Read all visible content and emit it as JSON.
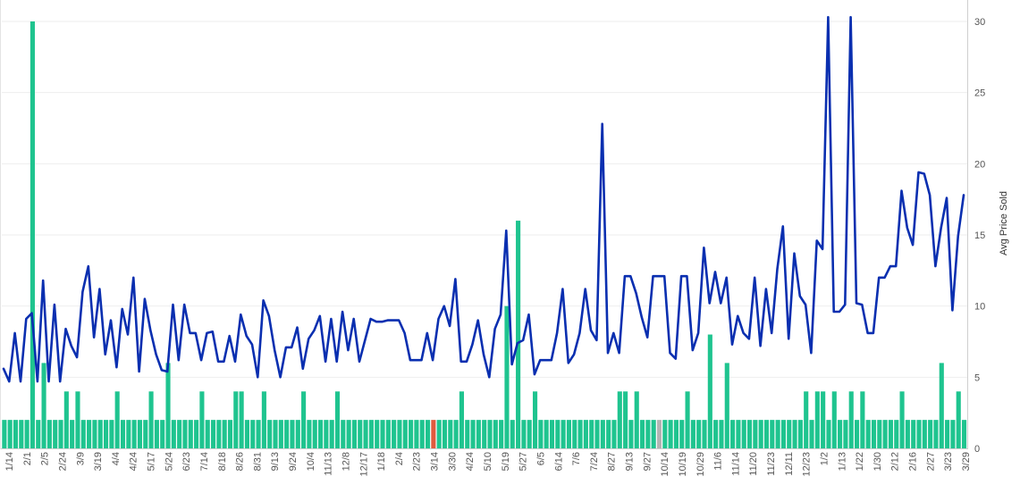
{
  "chart_data": {
    "type": "bar+line",
    "title": "",
    "xlabel": "",
    "ylabel": "",
    "y2label": "Avg Price Sold",
    "y2lim": [
      0,
      31
    ],
    "y2ticks": [
      0,
      5,
      10,
      15,
      20,
      25,
      30
    ],
    "grid": true,
    "x_tick_labels": [
      "1/14",
      "2/1",
      "2/5",
      "2/24",
      "3/9",
      "3/19",
      "4/4",
      "4/24",
      "5/17",
      "5/24",
      "6/23",
      "7/14",
      "8/18",
      "8/26",
      "8/31",
      "9/13",
      "9/24",
      "10/4",
      "11/13",
      "12/8",
      "12/17",
      "1/18",
      "2/4",
      "2/23",
      "3/14",
      "3/30",
      "4/24",
      "5/10",
      "5/19",
      "5/27",
      "6/5",
      "6/14",
      "7/6",
      "7/24",
      "8/27",
      "9/13",
      "9/27",
      "10/14",
      "10/19",
      "10/29",
      "11/6",
      "11/14",
      "11/20",
      "11/23",
      "12/11",
      "12/23",
      "1/2",
      "1/13",
      "1/22",
      "1/30",
      "2/12",
      "2/16",
      "2/27",
      "3/23",
      "3/29"
    ],
    "bar_series": {
      "colors": {
        "default": "#1fc48f",
        "highlight_red": "#e05a3e",
        "highlight_gray": "#b3b3b3"
      },
      "values": [
        2,
        2,
        2,
        2,
        2,
        30,
        2,
        6,
        2,
        2,
        2,
        4,
        2,
        4,
        2,
        2,
        2,
        2,
        2,
        2,
        4,
        2,
        2,
        2,
        2,
        2,
        4,
        2,
        2,
        6,
        2,
        2,
        2,
        2,
        2,
        4,
        2,
        2,
        2,
        2,
        2,
        4,
        4,
        2,
        2,
        2,
        4,
        2,
        2,
        2,
        2,
        2,
        2,
        4,
        2,
        2,
        2,
        2,
        2,
        4,
        2,
        2,
        2,
        2,
        2,
        2,
        2,
        2,
        2,
        2,
        2,
        2,
        2,
        2,
        2,
        2,
        2,
        2,
        2,
        2,
        2,
        4,
        2,
        2,
        2,
        2,
        2,
        2,
        2,
        10,
        2,
        16,
        2,
        2,
        4,
        2,
        2,
        2,
        2,
        2,
        2,
        2,
        2,
        2,
        2,
        2,
        2,
        2,
        2,
        4,
        4,
        2,
        4,
        2,
        2,
        2,
        2,
        2,
        2,
        2,
        2,
        4,
        2,
        2,
        2,
        8,
        2,
        2,
        6,
        2,
        2,
        2,
        2,
        2,
        2,
        2,
        2,
        2,
        2,
        2,
        2,
        2,
        4,
        2,
        4,
        4,
        2,
        4,
        2,
        2,
        4,
        2,
        4,
        2,
        2,
        2,
        2,
        2,
        2,
        4,
        2,
        2,
        2,
        2,
        2,
        2,
        6,
        2,
        2,
        4,
        2
      ],
      "red_index": 76,
      "gray_index": 116
    },
    "line_series": {
      "color": "#0a2fb0",
      "values": [
        5.6,
        4.7,
        8.1,
        4.7,
        9.1,
        9.5,
        4.7,
        11.8,
        4.7,
        10.1,
        4.7,
        8.4,
        7.2,
        6.4,
        11,
        12.8,
        7.8,
        11.2,
        6.6,
        9,
        5.7,
        9.8,
        8,
        12,
        5.4,
        10.5,
        8.3,
        6.6,
        5.5,
        5.4,
        10.1,
        6.2,
        10.1,
        8.1,
        8.1,
        6.2,
        8.1,
        8.2,
        6.1,
        6.1,
        7.9,
        6.1,
        9.4,
        7.9,
        7.3,
        5,
        10.4,
        9.3,
        6.9,
        5,
        7.1,
        7.1,
        8.5,
        5.6,
        7.7,
        8.3,
        9.3,
        6.1,
        9.1,
        6.1,
        9.6,
        6.9,
        9.1,
        6.1,
        7.6,
        9.1,
        8.9,
        8.9,
        9,
        9,
        9,
        8.1,
        6.2,
        6.2,
        6.2,
        8.1,
        6.2,
        9.1,
        10,
        8.6,
        11.9,
        6.1,
        6.1,
        7.3,
        9,
        6.6,
        5,
        8.4,
        9.4,
        15.3,
        5.9,
        7.4,
        7.6,
        9.4,
        5.2,
        6.2,
        6.2,
        6.2,
        8.1,
        11.2,
        6,
        6.6,
        8.1,
        11.2,
        8.3,
        7.6,
        22.8,
        6.7,
        8.1,
        6.7,
        12.1,
        12.1,
        10.9,
        9.2,
        7.8,
        12.1,
        12.1,
        12.1,
        6.7,
        6.3,
        12.1,
        12.1,
        6.9,
        8.1,
        14.1,
        10.2,
        12.4,
        10.2,
        12,
        7.3,
        9.3,
        8.1,
        7.7,
        12,
        7.2,
        11.2,
        8.1,
        12.6,
        15.6,
        7.7,
        13.7,
        10.7,
        10.1,
        6.7,
        14.6,
        14,
        30.3,
        9.6,
        9.6,
        10.1,
        30.3,
        10.2,
        10.1,
        8.1,
        8.1,
        12,
        12,
        12.8,
        12.8,
        18.1,
        15.5,
        14.3,
        19.4,
        19.3,
        17.8,
        12.8,
        15.5,
        17.6,
        9.7,
        14.9,
        17.8
      ]
    }
  }
}
